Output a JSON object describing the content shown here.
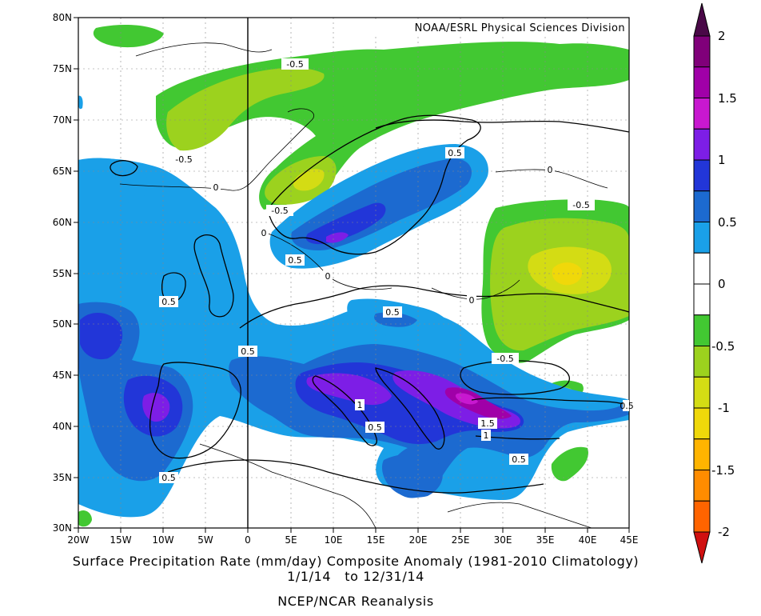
{
  "map": {
    "credit": "NOAA/ESRL Physical Sciences Division",
    "lon_labels": [
      "20W",
      "15W",
      "10W",
      "5W",
      "0",
      "5E",
      "10E",
      "15E",
      "20E",
      "25E",
      "30E",
      "35E",
      "40E",
      "45E"
    ],
    "lat_labels": [
      "80N",
      "75N",
      "70N",
      "65N",
      "60N",
      "55N",
      "50N",
      "45N",
      "40N",
      "35N",
      "30N"
    ],
    "contour_labels": [
      {
        "text": "-0.5"
      },
      {
        "text": "-0.5"
      },
      {
        "text": "-0.5"
      },
      {
        "text": "0"
      },
      {
        "text": "0"
      },
      {
        "text": "0.5"
      },
      {
        "text": "0.5"
      },
      {
        "text": "0"
      },
      {
        "text": "-0.5"
      },
      {
        "text": "0.5"
      },
      {
        "text": "0"
      },
      {
        "text": "0.5"
      },
      {
        "text": "0.5"
      },
      {
        "text": "-0.5"
      },
      {
        "text": "0.5"
      },
      {
        "text": "1"
      },
      {
        "text": "0.5"
      },
      {
        "text": "1.5"
      },
      {
        "text": "1"
      },
      {
        "text": "0.5"
      },
      {
        "text": "0.5"
      },
      {
        "text": "0"
      }
    ]
  },
  "colorbar": {
    "labels": [
      "2",
      "1.5",
      "1",
      "0.5",
      "0",
      "-0.5",
      "-1",
      "-1.5",
      "-2"
    ],
    "colors": [
      "#80007a",
      "#a000a8",
      "#c818d0",
      "#7d1ee6",
      "#2236d8",
      "#1c6ad0",
      "#1aa0e8",
      "#ffffff",
      "#ffffff",
      "#42c832",
      "#9cd21e",
      "#d4dc14",
      "#f0d80a",
      "#ffb400",
      "#ff8c00",
      "#ff6400"
    ],
    "top_arrow_color": "#4a0848",
    "bottom_arrow_color": "#d01010"
  },
  "caption": {
    "line1": "Surface Precipitation Rate (mm/day) Composite Anomaly (1981-2010 Climatology)",
    "line2": "1/1/14   to 12/31/14",
    "line3": "NCEP/NCAR Reanalysis"
  }
}
